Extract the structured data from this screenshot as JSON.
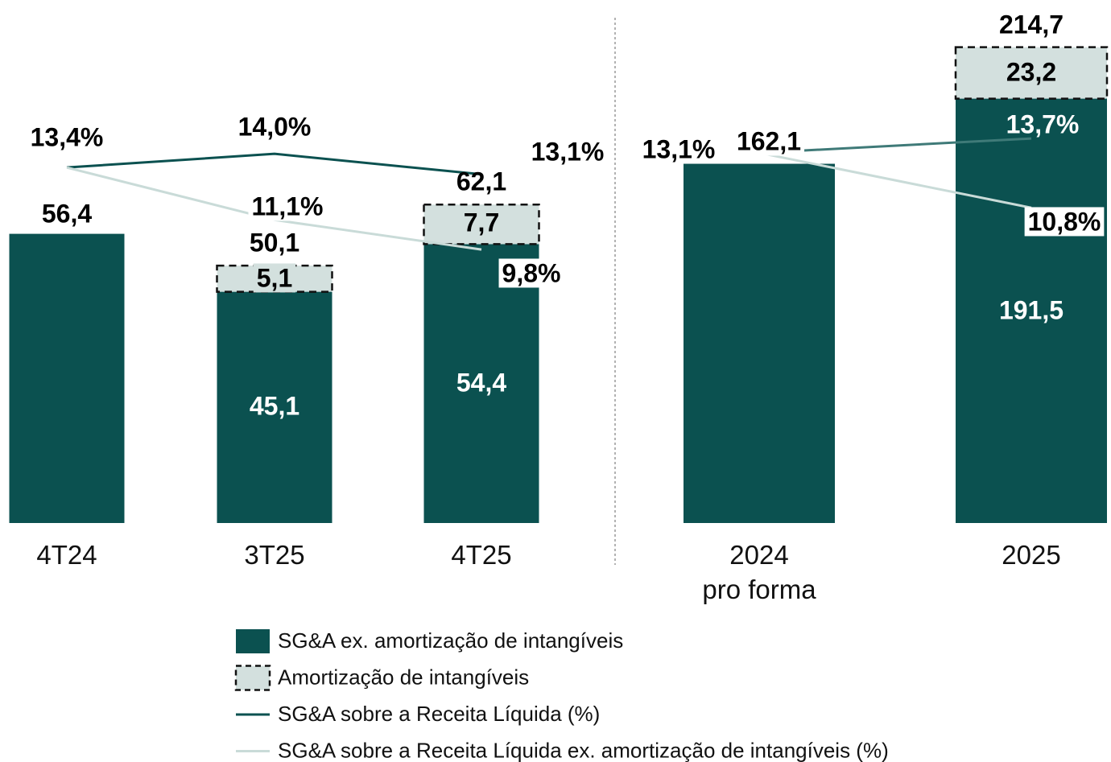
{
  "chart_data": [
    {
      "type": "bar",
      "categories": [
        "4T24",
        "3T25",
        "4T25"
      ],
      "ylim": [
        0,
        102
      ],
      "y2lim": [
        -2.2,
        20.75
      ],
      "series": [
        {
          "name": "SG&A ex. amortização de intangíveis",
          "color": "#0b5150",
          "values": [
            56.4,
            45.1,
            54.4
          ],
          "value_labels": [
            null,
            "45,1",
            "54,4"
          ]
        },
        {
          "name": "Amortização de intangíveis",
          "color": "#d3e0de",
          "values": [
            null,
            5.1,
            7.7
          ],
          "value_labels": [
            null,
            "5,1",
            "7,7"
          ]
        },
        {
          "name": "SG&A sobre a Receita Líquida (%)",
          "type": "line",
          "axis": "y2",
          "color": "#0b5150",
          "values": [
            13.4,
            14.0,
            13.1
          ],
          "value_labels": [
            "13,4%",
            "14,0%",
            "13,1%"
          ]
        },
        {
          "name": "SG&A sobre a Receita Líquida ex. amortização de intangíveis (%)",
          "type": "line",
          "axis": "y2",
          "color": "#c9dbd8",
          "values": [
            13.4,
            11.1,
            9.8
          ],
          "value_labels": [
            null,
            "11,1%",
            "9,8%"
          ]
        }
      ],
      "totals": [
        56.4,
        50.1,
        62.1
      ],
      "total_labels": [
        "56,4",
        "50,1",
        "62,1"
      ]
    },
    {
      "type": "bar",
      "categories": [
        "2024\npro forma",
        "2025"
      ],
      "ylim": [
        0,
        236
      ],
      "y2lim": [
        -2.4,
        19.5
      ],
      "series": [
        {
          "name": "SG&A ex. amortização de intangíveis",
          "color": "#0b5150",
          "values": [
            162.1,
            191.5
          ],
          "value_labels": [
            null,
            "191,5"
          ]
        },
        {
          "name": "Amortização de intangíveis",
          "color": "#d3e0de",
          "values": [
            null,
            23.2
          ],
          "value_labels": [
            null,
            "23,2"
          ]
        },
        {
          "name": "SG&A sobre a Receita Líquida (%)",
          "type": "line",
          "axis": "y2",
          "color": "#3f7a78",
          "values": [
            13.1,
            13.7
          ],
          "value_labels": [
            "13,1%",
            "13,7%"
          ]
        },
        {
          "name": "SG&A sobre a Receita Líquida ex. amortização de intangíveis (%)",
          "type": "line",
          "axis": "y2",
          "color": "#c9dbd8",
          "values": [
            13.1,
            10.8
          ],
          "value_labels": [
            null,
            "10,8%"
          ]
        }
      ],
      "totals": [
        162.1,
        214.7
      ],
      "total_labels": [
        "162,1",
        "214,7"
      ]
    }
  ]
}
